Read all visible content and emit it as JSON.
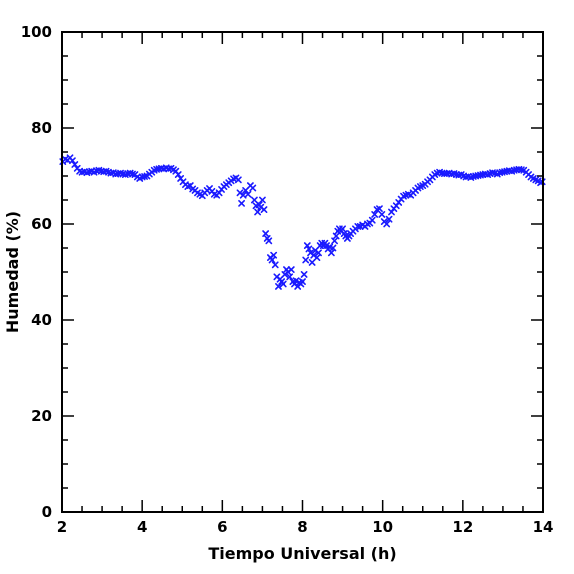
{
  "chart_data": {
    "type": "scatter",
    "xlabel": "Tiempo Universal (h)",
    "ylabel": "Humedad (%)",
    "xlim": [
      2,
      14
    ],
    "ylim": [
      0,
      100
    ],
    "xticks": [
      2,
      4,
      6,
      8,
      10,
      12,
      14
    ],
    "yticks": [
      0,
      20,
      40,
      60,
      80,
      100
    ],
    "grid": false,
    "marker": "x",
    "marker_color": "#1a1aff",
    "series": [
      {
        "points": [
          [
            2.02,
            73.0
          ],
          [
            2.08,
            73.5
          ],
          [
            2.14,
            73.3
          ],
          [
            2.2,
            73.8
          ],
          [
            2.26,
            73.2
          ],
          [
            2.32,
            72.4
          ],
          [
            2.38,
            71.6
          ],
          [
            2.44,
            71.0
          ],
          [
            2.5,
            70.8
          ],
          [
            2.56,
            70.9
          ],
          [
            2.62,
            70.7
          ],
          [
            2.68,
            70.9
          ],
          [
            2.74,
            71.0
          ],
          [
            2.8,
            70.8
          ],
          [
            2.86,
            71.1
          ],
          [
            2.92,
            71.2
          ],
          [
            2.98,
            71.0
          ],
          [
            3.04,
            70.9
          ],
          [
            3.1,
            71.0
          ],
          [
            3.16,
            70.8
          ],
          [
            3.22,
            70.6
          ],
          [
            3.28,
            70.7
          ],
          [
            3.34,
            70.4
          ],
          [
            3.4,
            70.5
          ],
          [
            3.46,
            70.6
          ],
          [
            3.52,
            70.4
          ],
          [
            3.58,
            70.3
          ],
          [
            3.64,
            70.5
          ],
          [
            3.7,
            70.6
          ],
          [
            3.76,
            70.4
          ],
          [
            3.82,
            70.3
          ],
          [
            3.88,
            69.8
          ],
          [
            3.94,
            69.5
          ],
          [
            4.0,
            69.8
          ],
          [
            4.06,
            69.9
          ],
          [
            4.12,
            70.0
          ],
          [
            4.18,
            70.4
          ],
          [
            4.24,
            70.8
          ],
          [
            4.3,
            71.2
          ],
          [
            4.36,
            71.4
          ],
          [
            4.42,
            71.5
          ],
          [
            4.48,
            71.6
          ],
          [
            4.54,
            71.5
          ],
          [
            4.6,
            71.7
          ],
          [
            4.66,
            71.5
          ],
          [
            4.72,
            71.6
          ],
          [
            4.78,
            71.3
          ],
          [
            4.84,
            71.0
          ],
          [
            4.9,
            70.3
          ],
          [
            4.96,
            69.5
          ],
          [
            5.02,
            68.8
          ],
          [
            5.08,
            68.2
          ],
          [
            5.14,
            67.8
          ],
          [
            5.2,
            68.0
          ],
          [
            5.26,
            67.3
          ],
          [
            5.32,
            67.0
          ],
          [
            5.38,
            66.5
          ],
          [
            5.44,
            66.2
          ],
          [
            5.5,
            65.9
          ],
          [
            5.56,
            66.5
          ],
          [
            5.62,
            67.0
          ],
          [
            5.68,
            67.4
          ],
          [
            5.74,
            66.8
          ],
          [
            5.8,
            66.2
          ],
          [
            5.86,
            66.0
          ],
          [
            5.92,
            66.5
          ],
          [
            5.98,
            67.2
          ],
          [
            6.04,
            67.8
          ],
          [
            6.1,
            68.2
          ],
          [
            6.16,
            68.6
          ],
          [
            6.22,
            69.0
          ],
          [
            6.28,
            69.4
          ],
          [
            6.34,
            69.6
          ],
          [
            6.4,
            69.2
          ],
          [
            6.44,
            66.5
          ],
          [
            6.48,
            64.3
          ],
          [
            6.52,
            66.0
          ],
          [
            6.58,
            67.0
          ],
          [
            6.64,
            66.2
          ],
          [
            6.7,
            68.0
          ],
          [
            6.76,
            67.5
          ],
          [
            6.8,
            65.0
          ],
          [
            6.84,
            63.8
          ],
          [
            6.88,
            62.5
          ],
          [
            6.92,
            64.0
          ],
          [
            6.96,
            63.5
          ],
          [
            7.0,
            65.0
          ],
          [
            7.04,
            63.0
          ],
          [
            7.08,
            58.0
          ],
          [
            7.12,
            57.0
          ],
          [
            7.16,
            56.5
          ],
          [
            7.2,
            53.0
          ],
          [
            7.24,
            52.5
          ],
          [
            7.28,
            53.5
          ],
          [
            7.32,
            51.5
          ],
          [
            7.36,
            49.0
          ],
          [
            7.4,
            47.0
          ],
          [
            7.44,
            48.5
          ],
          [
            7.48,
            48.0
          ],
          [
            7.52,
            47.5
          ],
          [
            7.56,
            49.5
          ],
          [
            7.6,
            50.5
          ],
          [
            7.64,
            50.0
          ],
          [
            7.68,
            49.0
          ],
          [
            7.72,
            50.5
          ],
          [
            7.76,
            48.0
          ],
          [
            7.8,
            47.5
          ],
          [
            7.84,
            48.2
          ],
          [
            7.88,
            47.0
          ],
          [
            7.92,
            47.8
          ],
          [
            7.96,
            47.5
          ],
          [
            8.0,
            48.0
          ],
          [
            8.04,
            49.5
          ],
          [
            8.08,
            52.5
          ],
          [
            8.12,
            55.5
          ],
          [
            8.16,
            54.8
          ],
          [
            8.2,
            54.0
          ],
          [
            8.24,
            52.0
          ],
          [
            8.28,
            53.5
          ],
          [
            8.32,
            54.5
          ],
          [
            8.36,
            53.0
          ],
          [
            8.4,
            54.0
          ],
          [
            8.44,
            55.5
          ],
          [
            8.48,
            56.0
          ],
          [
            8.52,
            55.5
          ],
          [
            8.56,
            56.0
          ],
          [
            8.6,
            55.5
          ],
          [
            8.64,
            54.8
          ],
          [
            8.68,
            55.2
          ],
          [
            8.72,
            54.0
          ],
          [
            8.76,
            55.0
          ],
          [
            8.8,
            56.5
          ],
          [
            8.84,
            57.5
          ],
          [
            8.88,
            58.5
          ],
          [
            8.92,
            59.0
          ],
          [
            8.96,
            58.5
          ],
          [
            9.0,
            59.0
          ],
          [
            9.04,
            58.0
          ],
          [
            9.08,
            57.5
          ],
          [
            9.12,
            57.0
          ],
          [
            9.16,
            57.5
          ],
          [
            9.2,
            58.0
          ],
          [
            9.26,
            58.5
          ],
          [
            9.32,
            59.0
          ],
          [
            9.38,
            59.5
          ],
          [
            9.44,
            59.5
          ],
          [
            9.5,
            59.8
          ],
          [
            9.56,
            59.5
          ],
          [
            9.62,
            60.0
          ],
          [
            9.68,
            60.2
          ],
          [
            9.74,
            60.8
          ],
          [
            9.8,
            62.0
          ],
          [
            9.86,
            63.0
          ],
          [
            9.92,
            63.2
          ],
          [
            9.98,
            62.0
          ],
          [
            10.04,
            60.5
          ],
          [
            10.1,
            60.0
          ],
          [
            10.16,
            61.0
          ],
          [
            10.22,
            62.5
          ],
          [
            10.28,
            63.2
          ],
          [
            10.34,
            63.8
          ],
          [
            10.4,
            64.5
          ],
          [
            10.46,
            65.2
          ],
          [
            10.52,
            65.8
          ],
          [
            10.58,
            66.0
          ],
          [
            10.64,
            66.2
          ],
          [
            10.7,
            66.0
          ],
          [
            10.76,
            66.5
          ],
          [
            10.82,
            67.0
          ],
          [
            10.88,
            67.5
          ],
          [
            10.94,
            67.8
          ],
          [
            11.0,
            68.0
          ],
          [
            11.06,
            68.3
          ],
          [
            11.12,
            68.8
          ],
          [
            11.18,
            69.2
          ],
          [
            11.24,
            69.8
          ],
          [
            11.3,
            70.3
          ],
          [
            11.36,
            70.6
          ],
          [
            11.42,
            70.8
          ],
          [
            11.48,
            70.6
          ],
          [
            11.54,
            70.5
          ],
          [
            11.6,
            70.5
          ],
          [
            11.66,
            70.6
          ],
          [
            11.72,
            70.4
          ],
          [
            11.78,
            70.5
          ],
          [
            11.84,
            70.3
          ],
          [
            11.9,
            70.2
          ],
          [
            11.96,
            70.3
          ],
          [
            12.02,
            70.0
          ],
          [
            12.08,
            69.8
          ],
          [
            12.14,
            69.9
          ],
          [
            12.2,
            69.7
          ],
          [
            12.26,
            69.9
          ],
          [
            12.32,
            70.0
          ],
          [
            12.38,
            70.1
          ],
          [
            12.44,
            70.2
          ],
          [
            12.5,
            70.3
          ],
          [
            12.56,
            70.4
          ],
          [
            12.62,
            70.3
          ],
          [
            12.68,
            70.5
          ],
          [
            12.74,
            70.7
          ],
          [
            12.8,
            70.6
          ],
          [
            12.86,
            70.4
          ],
          [
            12.92,
            70.7
          ],
          [
            12.98,
            70.8
          ],
          [
            13.04,
            70.9
          ],
          [
            13.1,
            71.0
          ],
          [
            13.16,
            71.1
          ],
          [
            13.22,
            71.0
          ],
          [
            13.28,
            71.2
          ],
          [
            13.34,
            71.3
          ],
          [
            13.4,
            71.4
          ],
          [
            13.46,
            71.3
          ],
          [
            13.52,
            71.2
          ],
          [
            13.58,
            70.8
          ],
          [
            13.64,
            70.3
          ],
          [
            13.7,
            69.8
          ],
          [
            13.76,
            69.5
          ],
          [
            13.82,
            69.2
          ],
          [
            13.88,
            69.0
          ],
          [
            13.94,
            68.6
          ],
          [
            13.98,
            68.8
          ]
        ]
      }
    ]
  }
}
